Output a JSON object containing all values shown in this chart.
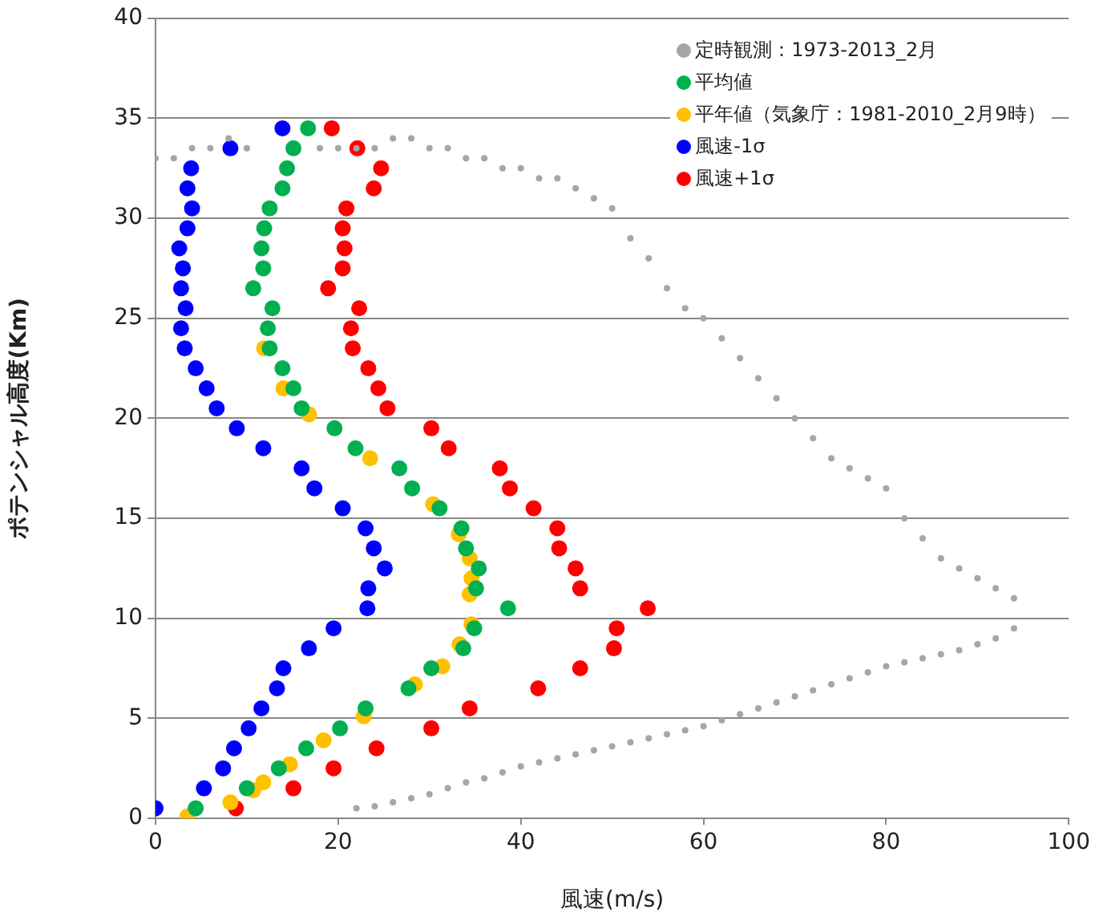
{
  "chart_data": {
    "type": "scatter",
    "xlabel": "風速(m/s)",
    "ylabel": "ポテンシャル高度(Km)",
    "xlim": [
      0,
      100
    ],
    "xticks": [
      0,
      20,
      40,
      60,
      80,
      100
    ],
    "ylim": [
      0,
      40
    ],
    "yticks": [
      0,
      5,
      10,
      15,
      20,
      25,
      30,
      35,
      40
    ],
    "grid": "y",
    "legend": "top right",
    "marker": "circle",
    "series": [
      {
        "name": "定時観測：1973-2013_2月",
        "color": "#a6a6a6",
        "x": [
          0,
          2,
          4,
          6,
          8,
          10,
          12,
          14,
          16,
          18,
          20,
          22,
          24,
          26,
          28,
          30,
          32,
          34,
          36,
          38,
          40,
          42,
          44,
          46,
          48,
          50,
          52,
          54,
          56,
          58,
          60,
          62,
          64,
          66,
          68,
          70,
          72,
          74,
          76,
          78,
          80,
          82,
          84,
          86,
          88,
          90,
          92,
          94,
          22,
          24,
          26,
          28,
          30,
          32,
          34,
          36,
          38,
          40,
          42,
          44,
          46,
          48,
          50,
          52,
          54,
          56,
          58,
          60,
          62,
          64,
          66,
          68,
          70,
          72,
          74,
          76,
          78,
          80,
          82,
          84,
          86,
          88,
          90,
          92,
          94
        ],
        "values": [
          33,
          33,
          33.5,
          33.5,
          34,
          33.5,
          null,
          null,
          null,
          33.5,
          33.5,
          33.5,
          33.5,
          34,
          34,
          33.5,
          33.5,
          33,
          33,
          32.5,
          32.5,
          32,
          32,
          31.5,
          31,
          30.5,
          29,
          28,
          26.5,
          25.5,
          25,
          24,
          23,
          22,
          21,
          20,
          19,
          18,
          17.5,
          17,
          16.5,
          15,
          14,
          13,
          12.5,
          12,
          11.5,
          11,
          0.5,
          0.6,
          0.8,
          1,
          1.2,
          1.5,
          1.8,
          2,
          2.3,
          2.6,
          2.8,
          3,
          3.2,
          3.4,
          3.6,
          3.8,
          4,
          4.2,
          4.4,
          4.6,
          4.9,
          5.2,
          5.5,
          5.8,
          6.1,
          6.4,
          6.7,
          7,
          7.3,
          7.6,
          7.8,
          8,
          8.2,
          8.4,
          8.7,
          9,
          9.5
        ]
      },
      {
        "name": "平均値",
        "color": "#00b050",
        "x": [
          16.7,
          15.1,
          14.4,
          13.9,
          12.5,
          11.9,
          11.6,
          11.8,
          10.7,
          12.8,
          12.3,
          12.5,
          13.9,
          15.1,
          16.0,
          19.6,
          21.9,
          26.7,
          28.1,
          31.1,
          33.5,
          34.0,
          35.4,
          35.1,
          38.6,
          34.9,
          33.7,
          30.2,
          27.7,
          23.0,
          20.2,
          16.5,
          13.5,
          10.0,
          4.4
        ],
        "values": [
          34.5,
          33.5,
          32.5,
          31.5,
          30.5,
          29.5,
          28.5,
          27.5,
          26.5,
          25.5,
          24.5,
          23.5,
          22.5,
          21.5,
          20.5,
          19.5,
          18.5,
          17.5,
          16.5,
          15.5,
          14.5,
          13.5,
          12.5,
          11.5,
          10.5,
          9.5,
          8.5,
          7.5,
          6.5,
          5.5,
          4.5,
          3.5,
          2.5,
          1.5,
          0.5
        ]
      },
      {
        "name": "平年値（気象庁：1981-2010_2月9時）",
        "color": "#ffc000",
        "x": [
          11.9,
          14.0,
          16.8,
          23.5,
          30.4,
          33.2,
          34.4,
          34.6,
          34.4,
          34.6,
          33.3,
          31.4,
          28.4,
          22.8,
          18.4,
          14.7,
          11.8,
          10.7,
          8.2,
          3.5
        ],
        "values": [
          23.5,
          21.5,
          20.2,
          18.0,
          15.7,
          14.2,
          13.0,
          12.0,
          11.2,
          9.7,
          8.7,
          7.6,
          6.7,
          5.1,
          3.9,
          2.7,
          1.8,
          1.4,
          0.8,
          0.1
        ]
      },
      {
        "name": "風速-1σ",
        "color": "#0000ff",
        "x": [
          13.9,
          8.2,
          3.9,
          3.5,
          4.0,
          3.5,
          2.6,
          3.0,
          2.8,
          3.3,
          2.8,
          3.2,
          4.4,
          5.6,
          6.7,
          8.9,
          11.8,
          16.0,
          17.4,
          20.5,
          23.0,
          23.9,
          25.1,
          23.3,
          23.2,
          19.5,
          16.8,
          14.0,
          13.3,
          11.6,
          10.2,
          8.6,
          7.4,
          5.3,
          0.0
        ],
        "values": [
          34.5,
          33.5,
          32.5,
          31.5,
          30.5,
          29.5,
          28.5,
          27.5,
          26.5,
          25.5,
          24.5,
          23.5,
          22.5,
          21.5,
          20.5,
          19.5,
          18.5,
          17.5,
          16.5,
          15.5,
          14.5,
          13.5,
          12.5,
          11.5,
          10.5,
          9.5,
          8.5,
          7.5,
          6.5,
          5.5,
          4.5,
          3.5,
          2.5,
          1.5,
          0.5
        ]
      },
      {
        "name": "風速+1σ",
        "color": "#ff0000",
        "x": [
          19.3,
          22.1,
          24.7,
          23.9,
          20.9,
          20.5,
          20.7,
          20.5,
          18.9,
          22.3,
          21.4,
          21.6,
          23.3,
          24.4,
          25.4,
          30.2,
          32.1,
          37.7,
          38.8,
          41.4,
          44.0,
          44.2,
          46.0,
          46.5,
          53.9,
          50.5,
          50.2,
          46.5,
          41.9,
          34.4,
          30.2,
          24.2,
          19.5,
          15.1,
          8.8
        ],
        "values": [
          34.5,
          33.5,
          32.5,
          31.5,
          30.5,
          29.5,
          28.5,
          27.5,
          26.5,
          25.5,
          24.5,
          23.5,
          22.5,
          21.5,
          20.5,
          19.5,
          18.5,
          17.5,
          16.5,
          15.5,
          14.5,
          13.5,
          12.5,
          11.5,
          10.5,
          9.5,
          8.5,
          7.5,
          6.5,
          5.5,
          4.5,
          3.5,
          2.5,
          1.5,
          0.5
        ]
      }
    ]
  }
}
